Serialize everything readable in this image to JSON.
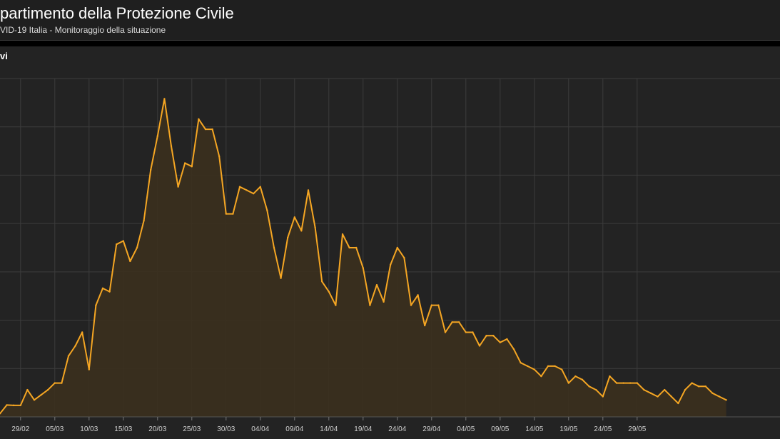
{
  "header": {
    "title": "partimento della Protezione Civile",
    "subtitle": "VID-19 Italia - Monitoraggio della situazione"
  },
  "colors": {
    "line": "#f5a623",
    "fill": "#3a2f1f",
    "grid": "#3c3c3c",
    "tick_text": "#cfcfcf"
  },
  "chart_data": {
    "type": "area",
    "title": "vi",
    "xlabel": "",
    "ylabel": "",
    "grid": true,
    "tick_labels": [
      "29/02",
      "05/03",
      "10/03",
      "15/03",
      "20/03",
      "25/03",
      "30/03",
      "04/04",
      "09/04",
      "14/04",
      "19/04",
      "24/04",
      "29/04",
      "04/05",
      "09/05",
      "14/05",
      "19/05",
      "24/05",
      "29/05"
    ],
    "ylim": [
      0,
      1000
    ],
    "values": [
      10,
      35,
      34,
      34,
      80,
      50,
      65,
      80,
      100,
      100,
      180,
      210,
      250,
      140,
      330,
      380,
      370,
      510,
      520,
      460,
      500,
      580,
      730,
      830,
      940,
      800,
      680,
      750,
      740,
      880,
      850,
      850,
      770,
      600,
      600,
      680,
      670,
      660,
      680,
      610,
      500,
      410,
      530,
      590,
      550,
      670,
      560,
      400,
      370,
      330,
      540,
      500,
      500,
      440,
      330,
      390,
      340,
      450,
      500,
      470,
      330,
      360,
      270,
      330,
      330,
      250,
      280,
      280,
      250,
      250,
      210,
      240,
      240,
      220,
      230,
      200,
      160,
      150,
      140,
      120,
      150,
      150,
      140,
      100,
      120,
      110,
      90,
      80,
      60,
      120,
      100,
      100,
      100,
      100,
      80,
      70,
      60,
      80,
      60,
      40,
      80,
      100,
      90,
      90,
      70,
      60,
      50
    ]
  }
}
